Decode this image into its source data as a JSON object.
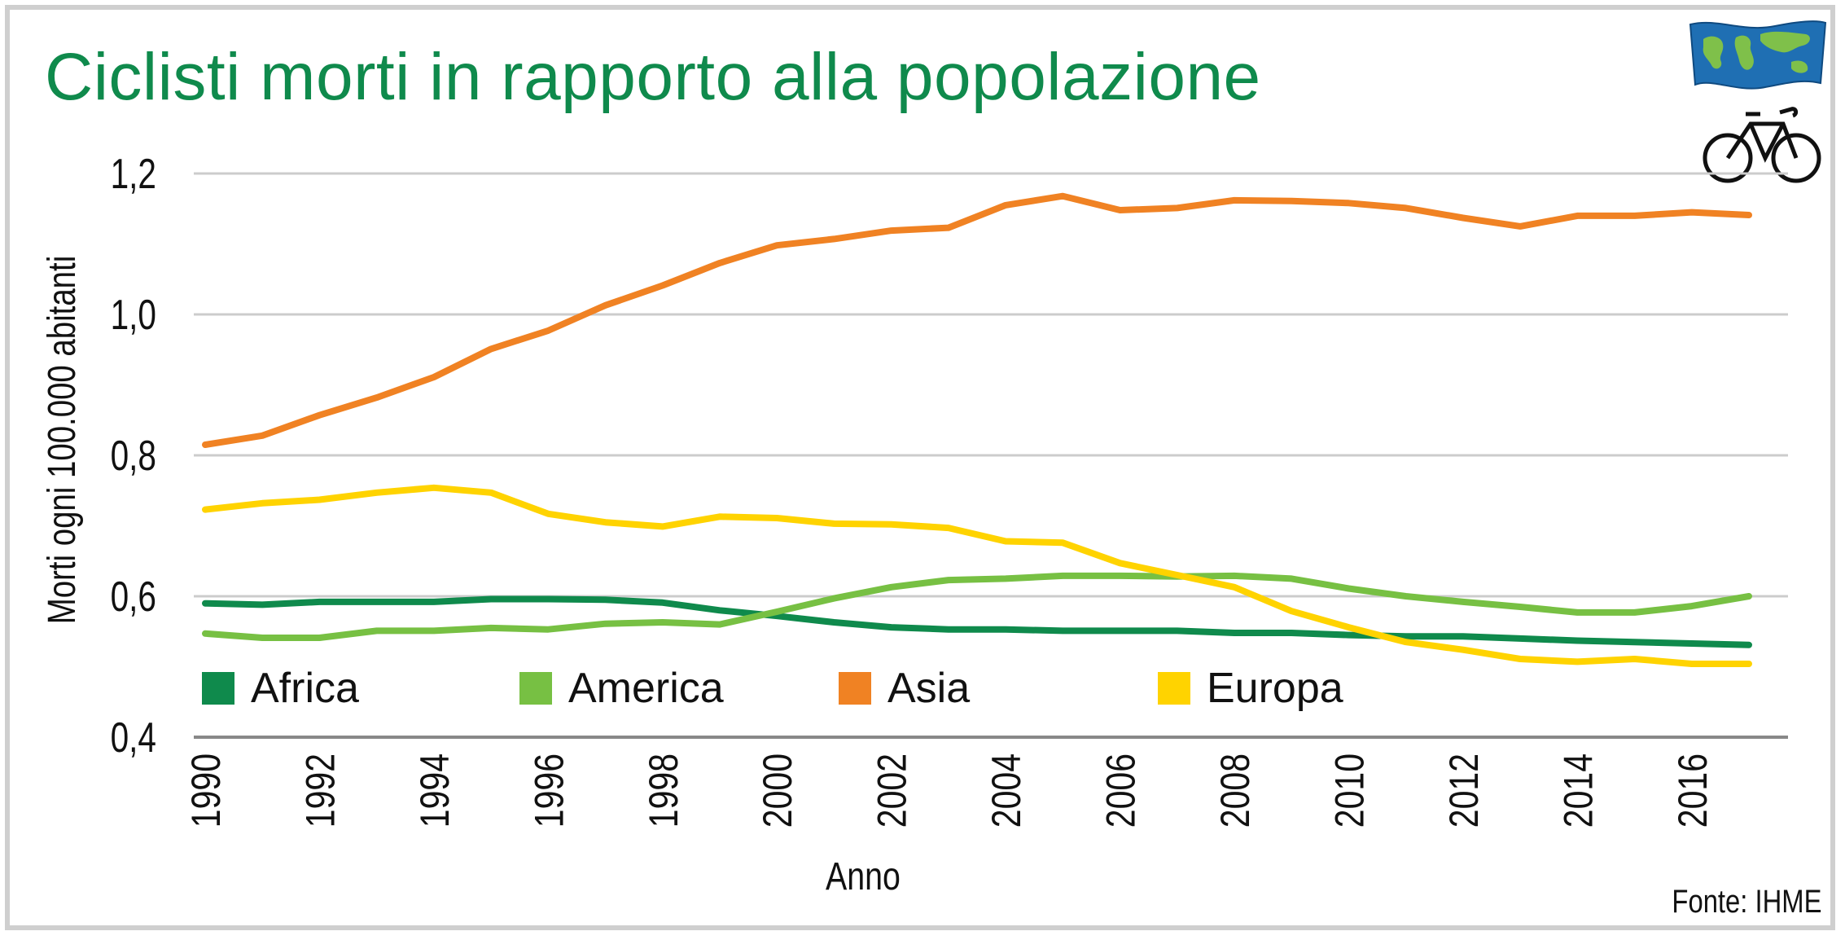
{
  "source_label": "Fonte: IHME",
  "colors": {
    "title": "#0f8a4c",
    "Africa": "#0f8a4c",
    "America": "#77c043",
    "Asia": "#f08223",
    "Europa": "#ffd300",
    "grid": "#cccccc",
    "axis": "#888888"
  },
  "icons": [
    "world-map-flag-icon",
    "bicycle-icon"
  ],
  "chart_data": {
    "type": "line",
    "title": "Ciclisti morti in rapporto alla popolazione",
    "xlabel": "Anno",
    "ylabel": "Morti ogni 100.000 abitanti",
    "ylim": [
      0.4,
      1.2
    ],
    "xlim": [
      1990,
      2017
    ],
    "yticks": [
      0.4,
      0.6,
      0.8,
      1.0,
      1.2
    ],
    "ytick_labels": [
      "0,4",
      "0,6",
      "0,8",
      "1,0",
      "1,2"
    ],
    "xticks": [
      1990,
      1992,
      1994,
      1996,
      1998,
      2000,
      2002,
      2004,
      2006,
      2008,
      2010,
      2012,
      2014,
      2016
    ],
    "xtick_labels": [
      "1990",
      "1992",
      "1994",
      "1996",
      "1998",
      "2000",
      "2002",
      "2004",
      "2006",
      "2008",
      "2010",
      "2012",
      "2014",
      "2016"
    ],
    "grid": true,
    "legend_position": "bottom-inside",
    "x": [
      1990,
      1991,
      1992,
      1993,
      1994,
      1995,
      1996,
      1997,
      1998,
      1999,
      2000,
      2001,
      2002,
      2003,
      2004,
      2005,
      2006,
      2007,
      2008,
      2009,
      2010,
      2011,
      2012,
      2013,
      2014,
      2015,
      2016,
      2017
    ],
    "series": [
      {
        "name": "Africa",
        "values": [
          0.59,
          0.588,
          0.592,
          0.592,
          0.592,
          0.596,
          0.596,
          0.595,
          0.591,
          0.58,
          0.572,
          0.563,
          0.556,
          0.553,
          0.553,
          0.551,
          0.551,
          0.551,
          0.548,
          0.548,
          0.545,
          0.543,
          0.543,
          0.54,
          0.537,
          0.535,
          0.533,
          0.531
        ]
      },
      {
        "name": "America",
        "values": [
          0.547,
          0.541,
          0.541,
          0.551,
          0.551,
          0.555,
          0.553,
          0.561,
          0.563,
          0.56,
          0.578,
          0.597,
          0.613,
          0.623,
          0.625,
          0.629,
          0.629,
          0.628,
          0.629,
          0.625,
          0.611,
          0.6,
          0.592,
          0.585,
          0.577,
          0.577,
          0.586,
          0.6
        ]
      },
      {
        "name": "Asia",
        "values": [
          0.815,
          0.828,
          0.857,
          0.882,
          0.911,
          0.951,
          0.977,
          1.013,
          1.041,
          1.073,
          1.098,
          1.107,
          1.119,
          1.123,
          1.155,
          1.168,
          1.148,
          1.151,
          1.162,
          1.161,
          1.158,
          1.151,
          1.137,
          1.125,
          1.14,
          1.14,
          1.145,
          1.141
        ]
      },
      {
        "name": "Europa",
        "values": [
          0.723,
          0.732,
          0.737,
          0.747,
          0.754,
          0.747,
          0.717,
          0.705,
          0.699,
          0.713,
          0.711,
          0.703,
          0.702,
          0.697,
          0.678,
          0.676,
          0.647,
          0.63,
          0.613,
          0.579,
          0.556,
          0.535,
          0.524,
          0.511,
          0.507,
          0.511,
          0.504,
          0.504
        ]
      }
    ]
  }
}
